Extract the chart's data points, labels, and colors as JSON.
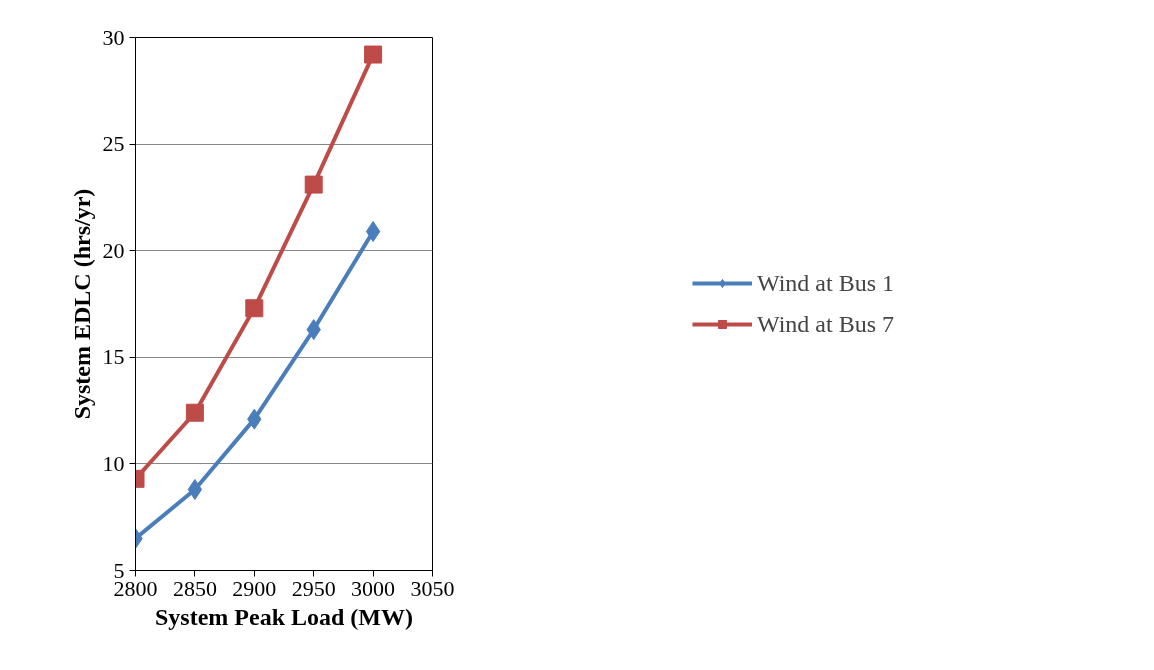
{
  "chart_data": {
    "type": "line",
    "xlabel": "System Peak Load (MW)",
    "ylabel": "System EDLC (hrs/yr)",
    "x": [
      2800,
      2850,
      2900,
      2950,
      3000
    ],
    "series": [
      {
        "name": "Wind at Bus 1",
        "color": "#4a7ebb",
        "marker": "diamond",
        "values": [
          6.5,
          8.8,
          12.1,
          16.3,
          20.9
        ]
      },
      {
        "name": "Wind at Bus 7",
        "color": "#be4b48",
        "marker": "square",
        "values": [
          9.3,
          12.4,
          17.3,
          23.1,
          29.2
        ]
      }
    ],
    "xlim": [
      2800,
      3050
    ],
    "xticks": [
      2800,
      2850,
      2900,
      2950,
      3000,
      3050
    ],
    "ylim": [
      5,
      30
    ],
    "yticks": [
      5,
      10,
      15,
      20,
      25,
      30
    ],
    "grid": "y",
    "legend": "right",
    "line_style": "solid"
  }
}
